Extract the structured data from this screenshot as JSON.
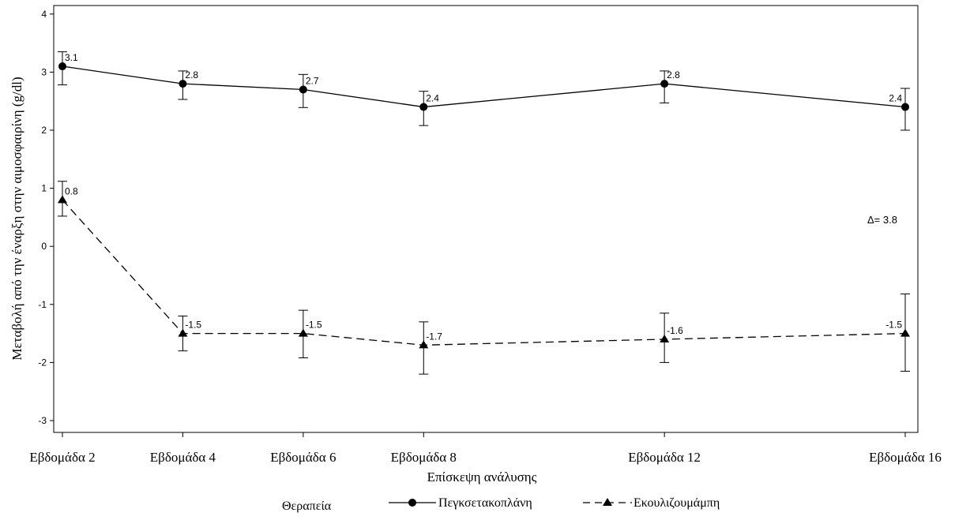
{
  "chart_data": {
    "type": "line",
    "xlabel": "Επίσκεψη ανάλυσης",
    "ylabel": "Μεταβολή από την έναρξη στην αιμοσφαιρίνη (g/dl)",
    "categories": [
      "Εβδομάδα 2",
      "Εβδομάδα 4",
      "Εβδομάδα 6",
      "Εβδομάδα 8",
      "Εβδομάδα 12",
      "Εβδομάδα 16"
    ],
    "x_weeks": [
      2,
      4,
      6,
      8,
      12,
      16
    ],
    "ylim": [
      -3,
      4
    ],
    "yticks": [
      "-3",
      "-2",
      "-1",
      "0",
      "1",
      "2",
      "3",
      "4"
    ],
    "grid": false,
    "legend_placement": "bottom",
    "legend_title": "Θεραπεία",
    "annotation": "Δ= 3.8",
    "series": [
      {
        "name": "Πεγκσετακοπλάνη",
        "values": [
          3.1,
          2.8,
          2.7,
          2.4,
          2.8,
          2.4
        ],
        "labels": [
          "3.1",
          "2.8",
          "2.7",
          "2.4",
          "2.8",
          "2.4"
        ],
        "err_low": [
          2.78,
          2.53,
          2.39,
          2.08,
          2.47,
          2.0
        ],
        "err_high": [
          3.35,
          3.02,
          2.96,
          2.67,
          3.02,
          2.72
        ],
        "marker": "circle",
        "line": "solid"
      },
      {
        "name": "Εκουλιζουμάμπη",
        "values": [
          0.8,
          -1.5,
          -1.5,
          -1.7,
          -1.6,
          -1.5
        ],
        "labels": [
          "0.8",
          "-1.5",
          "-1.5",
          "-1.7",
          "-1.6",
          "-1.5"
        ],
        "err_low": [
          0.52,
          -1.8,
          -1.92,
          -2.2,
          -2.0,
          -2.15
        ],
        "err_high": [
          1.12,
          -1.2,
          -1.1,
          -1.3,
          -1.15,
          -0.82
        ],
        "marker": "triangle",
        "line": "dashed"
      }
    ]
  }
}
